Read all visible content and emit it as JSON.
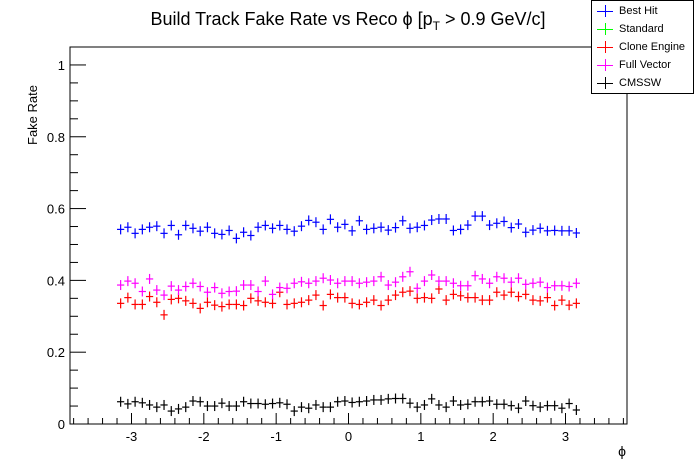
{
  "chart_data": {
    "type": "scatter",
    "title_parts": {
      "main": "Build Track Fake Rate vs Reco ϕ [p",
      "sub": "T",
      "rest": " > 0.9 GeV/c]"
    },
    "xlabel": "ϕ",
    "ylabel": "Fake Rate",
    "xlim": [
      -3.85,
      3.85
    ],
    "ylim": [
      0,
      1.05
    ],
    "xticks": [
      "-3",
      "-2",
      "-1",
      "0",
      "1",
      "2",
      "3"
    ],
    "yticks": [
      "0",
      "0.2",
      "0.4",
      "0.6",
      "0.8",
      "1"
    ],
    "legend_position": "top-right",
    "x_start": -3.15,
    "x_step": 0.1,
    "bin_half_width": 0.05,
    "series": [
      {
        "name": "Best Hit",
        "color": "#0000ff",
        "values": [
          0.542,
          0.548,
          0.531,
          0.542,
          0.548,
          0.551,
          0.531,
          0.553,
          0.527,
          0.553,
          0.545,
          0.537,
          0.548,
          0.531,
          0.528,
          0.539,
          0.517,
          0.534,
          0.525,
          0.548,
          0.553,
          0.545,
          0.553,
          0.542,
          0.537,
          0.551,
          0.567,
          0.562,
          0.542,
          0.57,
          0.548,
          0.556,
          0.538,
          0.566,
          0.542,
          0.545,
          0.548,
          0.54,
          0.547,
          0.566,
          0.545,
          0.548,
          0.553,
          0.568,
          0.571,
          0.571,
          0.539,
          0.542,
          0.554,
          0.579,
          0.579,
          0.554,
          0.559,
          0.564,
          0.547,
          0.557,
          0.534,
          0.54,
          0.545,
          0.538,
          0.539,
          0.538,
          0.538,
          0.532
        ]
      },
      {
        "name": "Standard",
        "color": "#00ff00",
        "values": []
      },
      {
        "name": "Clone Engine",
        "color": "#ff0000",
        "values": [
          0.336,
          0.352,
          0.333,
          0.333,
          0.355,
          0.339,
          0.304,
          0.347,
          0.35,
          0.343,
          0.336,
          0.322,
          0.339,
          0.331,
          0.327,
          0.333,
          0.333,
          0.33,
          0.35,
          0.343,
          0.339,
          0.336,
          0.367,
          0.333,
          0.336,
          0.339,
          0.345,
          0.359,
          0.33,
          0.361,
          0.352,
          0.352,
          0.336,
          0.333,
          0.339,
          0.345,
          0.33,
          0.345,
          0.359,
          0.367,
          0.37,
          0.35,
          0.352,
          0.35,
          0.376,
          0.345,
          0.361,
          0.357,
          0.352,
          0.352,
          0.345,
          0.345,
          0.367,
          0.359,
          0.367,
          0.355,
          0.361,
          0.345,
          0.343,
          0.352,
          0.33,
          0.345,
          0.331,
          0.336
        ]
      },
      {
        "name": "Full Vector",
        "color": "#ff00ff",
        "values": [
          0.387,
          0.398,
          0.392,
          0.369,
          0.404,
          0.373,
          0.359,
          0.384,
          0.373,
          0.383,
          0.392,
          0.383,
          0.367,
          0.38,
          0.364,
          0.369,
          0.37,
          0.387,
          0.387,
          0.369,
          0.398,
          0.361,
          0.38,
          0.378,
          0.392,
          0.396,
          0.392,
          0.398,
          0.406,
          0.401,
          0.392,
          0.398,
          0.398,
          0.392,
          0.395,
          0.398,
          0.41,
          0.387,
          0.395,
          0.41,
          0.424,
          0.378,
          0.398,
          0.415,
          0.398,
          0.398,
          0.392,
          0.385,
          0.385,
          0.413,
          0.404,
          0.392,
          0.41,
          0.406,
          0.395,
          0.406,
          0.389,
          0.392,
          0.395,
          0.38,
          0.385,
          0.385,
          0.383,
          0.392
        ]
      },
      {
        "name": "CMSSW",
        "color": "#000000",
        "values": [
          0.062,
          0.056,
          0.062,
          0.059,
          0.053,
          0.047,
          0.053,
          0.036,
          0.042,
          0.047,
          0.064,
          0.062,
          0.05,
          0.05,
          0.058,
          0.05,
          0.05,
          0.062,
          0.057,
          0.057,
          0.055,
          0.057,
          0.059,
          0.055,
          0.036,
          0.047,
          0.044,
          0.053,
          0.047,
          0.047,
          0.062,
          0.064,
          0.06,
          0.062,
          0.064,
          0.067,
          0.067,
          0.07,
          0.071,
          0.071,
          0.058,
          0.047,
          0.053,
          0.07,
          0.053,
          0.047,
          0.064,
          0.053,
          0.055,
          0.062,
          0.062,
          0.064,
          0.055,
          0.055,
          0.051,
          0.044,
          0.064,
          0.051,
          0.047,
          0.051,
          0.051,
          0.044,
          0.057,
          0.039
        ]
      }
    ]
  }
}
